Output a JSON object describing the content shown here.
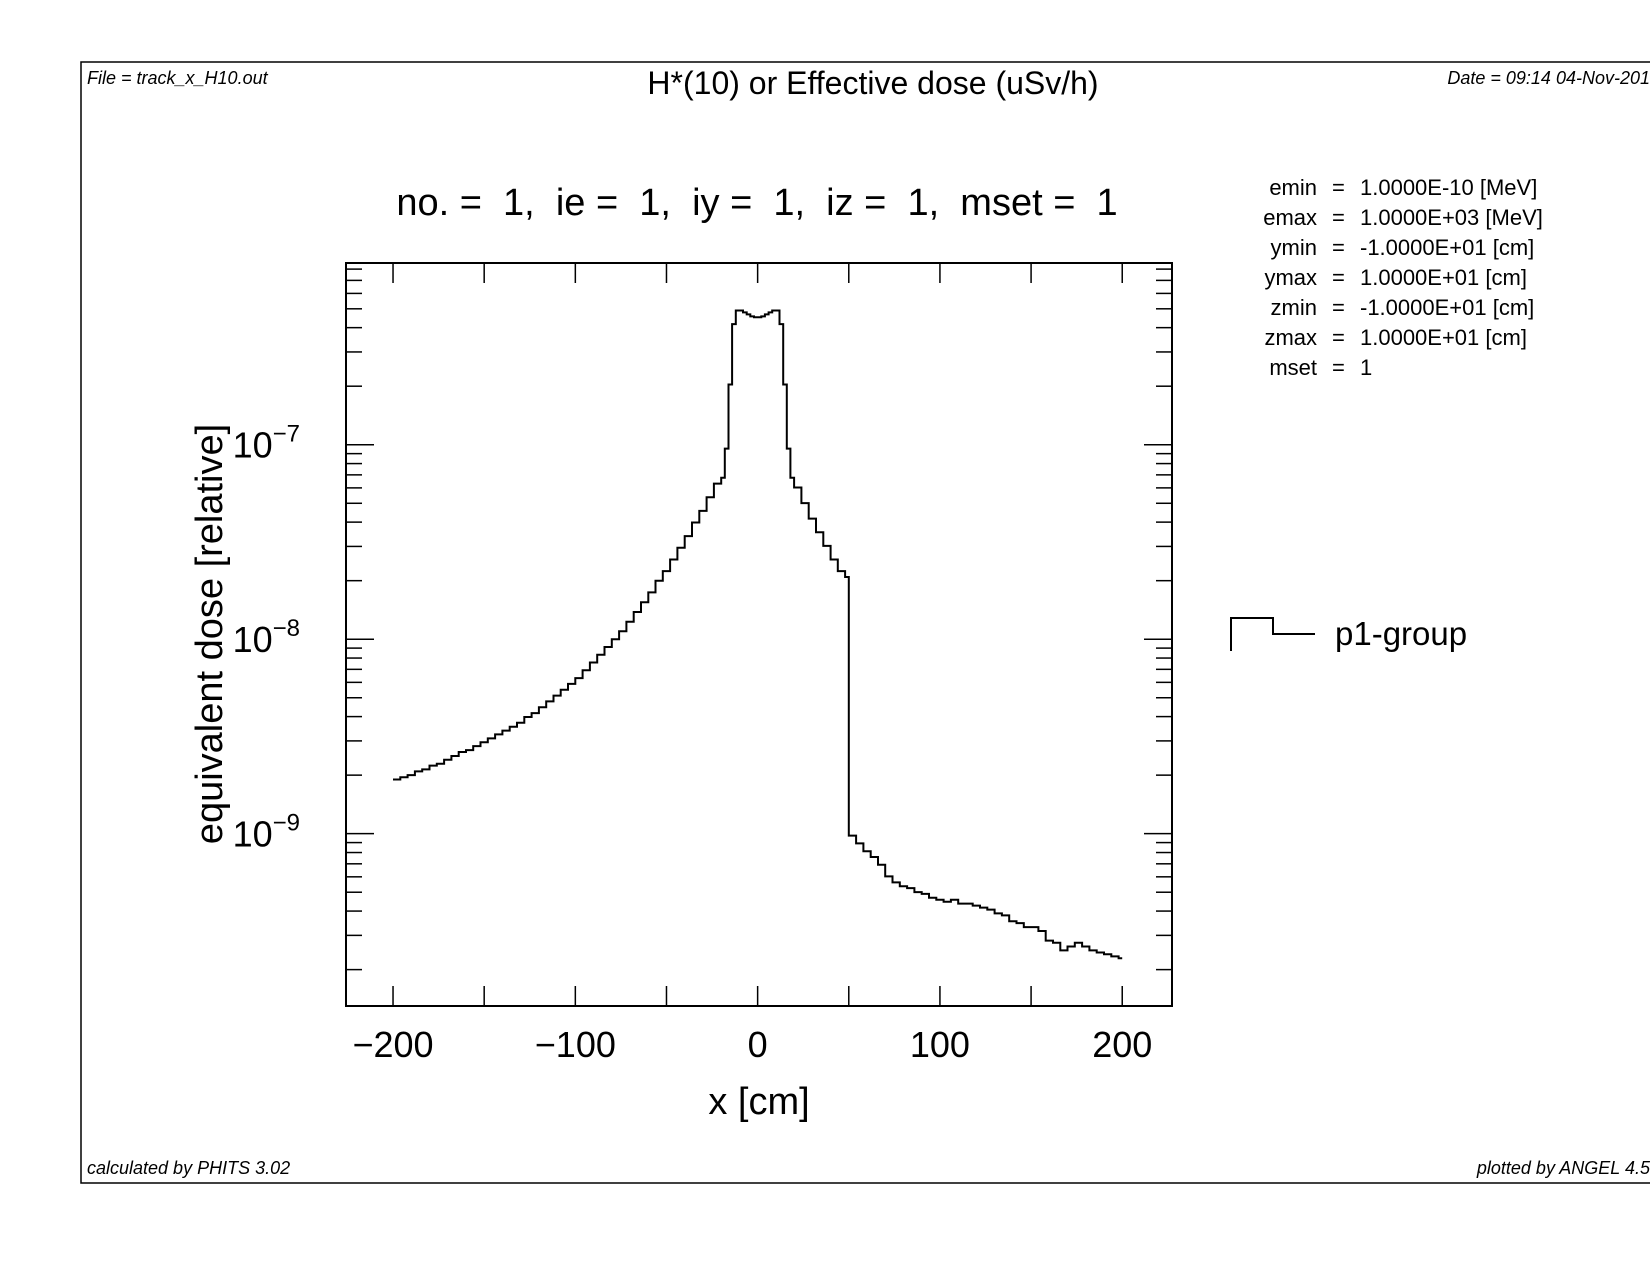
{
  "header": {
    "file": "File = track_x_H10.out",
    "title": "H*(10) or Effective dose (uSv/h)",
    "date": "Date = 09:14 04-Nov-201"
  },
  "footer": {
    "calculated_by": "calculated by PHITS 3.02",
    "plotted_by": "plotted by ANGEL 4.5"
  },
  "params": [
    {
      "name": "emin",
      "eq": "=",
      "value": " 1.0000E-10 [MeV]"
    },
    {
      "name": "emax",
      "eq": "=",
      "value": " 1.0000E+03 [MeV]"
    },
    {
      "name": "ymin",
      "eq": "=",
      "value": "-1.0000E+01 [cm]"
    },
    {
      "name": "ymax",
      "eq": "=",
      "value": " 1.0000E+01 [cm]"
    },
    {
      "name": "zmin",
      "eq": "=",
      "value": "-1.0000E+01 [cm]"
    },
    {
      "name": "zmax",
      "eq": "=",
      "value": " 1.0000E+01 [cm]"
    },
    {
      "name": "mset",
      "eq": "=",
      "value": " 1"
    }
  ],
  "chart_data": {
    "type": "line",
    "style": "histogram-step",
    "title": "no. =  1,  ie =  1,  iy =  1,  iz =  1,  mset =  1",
    "xlabel": "x [cm]",
    "ylabel": "equivalent dose [relative]",
    "xlim": [
      -225.8,
      227.3
    ],
    "ylim": [
      1.3e-10,
      8.6e-07
    ],
    "yscale": "log",
    "x_ticks": [
      -200,
      -100,
      0,
      100,
      200
    ],
    "x_tick_labels": [
      "−200",
      "−100",
      "0",
      "100",
      "200"
    ],
    "y_ticks": [
      1e-09,
      1e-08,
      1e-07
    ],
    "y_tick_labels": [
      {
        "base": "10",
        "exp": "−9"
      },
      {
        "base": "10",
        "exp": "−8"
      },
      {
        "base": "10",
        "exp": "−7"
      }
    ],
    "grid": false,
    "legend": {
      "position": "right",
      "entries": [
        "p1-group"
      ]
    },
    "series": [
      {
        "name": "p1-group",
        "color": "#000000",
        "bin_edges": [
          -200,
          -196,
          -192,
          -188,
          -184,
          -180,
          -176,
          -172,
          -168,
          -164,
          -160,
          -156,
          -152,
          -148,
          -144,
          -140,
          -136,
          -132,
          -128,
          -124,
          -120,
          -116,
          -112,
          -108,
          -104,
          -100,
          -96,
          -92,
          -88,
          -84,
          -80,
          -76,
          -72,
          -68,
          -64,
          -60,
          -56,
          -52,
          -48,
          -44,
          -40,
          -36,
          -32,
          -28,
          -24,
          -20,
          -18,
          -16,
          -14,
          -12,
          -10,
          -8,
          -6,
          -4,
          -2,
          0,
          2,
          4,
          6,
          8,
          10,
          12,
          14,
          16,
          18,
          20,
          24,
          28,
          32,
          36,
          40,
          44,
          48,
          50,
          54,
          58,
          62,
          66,
          70,
          74,
          78,
          82,
          86,
          90,
          94,
          98,
          102,
          106,
          110,
          114,
          118,
          122,
          126,
          130,
          134,
          138,
          142,
          146,
          150,
          154,
          158,
          162,
          166,
          170,
          174,
          178,
          182,
          186,
          190,
          194,
          198,
          200
        ],
        "values": [
          1.9e-09,
          1.95e-09,
          2e-09,
          2.09e-09,
          2.14e-09,
          2.24e-09,
          2.29e-09,
          2.4e-09,
          2.51e-09,
          2.63e-09,
          2.69e-09,
          2.82e-09,
          2.95e-09,
          3.09e-09,
          3.24e-09,
          3.39e-09,
          3.55e-09,
          3.72e-09,
          3.98e-09,
          4.17e-09,
          4.47e-09,
          4.79e-09,
          5.13e-09,
          5.5e-09,
          5.89e-09,
          6.31e-09,
          6.92e-09,
          7.59e-09,
          8.32e-09,
          9.12e-09,
          1e-08,
          1.1e-08,
          1.23e-08,
          1.38e-08,
          1.55e-08,
          1.74e-08,
          2e-08,
          2.24e-08,
          2.57e-08,
          2.95e-08,
          3.39e-08,
          3.98e-08,
          4.57e-08,
          5.37e-08,
          6.31e-08,
          6.76e-08,
          9.55e-08,
          2.04e-07,
          4.17e-07,
          4.9e-07,
          4.9e-07,
          4.79e-07,
          4.68e-07,
          4.57e-07,
          4.52e-07,
          4.52e-07,
          4.57e-07,
          4.68e-07,
          4.79e-07,
          4.9e-07,
          4.9e-07,
          4.17e-07,
          2.04e-07,
          9.55e-08,
          6.76e-08,
          6.03e-08,
          5.01e-08,
          4.17e-08,
          3.55e-08,
          3.02e-08,
          2.57e-08,
          2.24e-08,
          2.09e-08,
          9.77e-10,
          8.91e-10,
          8.13e-10,
          7.59e-10,
          6.92e-10,
          6.03e-10,
          5.62e-10,
          5.37e-10,
          5.25e-10,
          5.01e-10,
          4.9e-10,
          4.68e-10,
          4.57e-10,
          4.47e-10,
          4.57e-10,
          4.37e-10,
          4.37e-10,
          4.27e-10,
          4.17e-10,
          4.07e-10,
          3.89e-10,
          3.8e-10,
          3.55e-10,
          3.47e-10,
          3.31e-10,
          3.31e-10,
          3.16e-10,
          2.82e-10,
          2.75e-10,
          2.51e-10,
          2.63e-10,
          2.75e-10,
          2.63e-10,
          2.51e-10,
          2.45e-10,
          2.4e-10,
          2.34e-10,
          2.29e-10
        ]
      }
    ]
  }
}
